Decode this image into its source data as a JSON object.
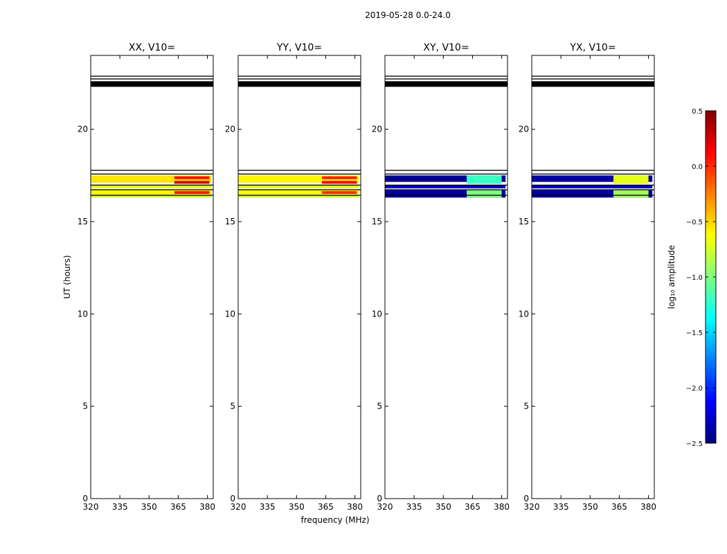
{
  "chart_data": {
    "type": "heatmap",
    "suptitle": "2019-05-28 0.0-24.0",
    "xlabel": "frequency (MHz)",
    "ylabel": "UT (hours)",
    "xlim": [
      320,
      383
    ],
    "ylim": [
      0,
      24
    ],
    "xticks": [
      "320",
      "335",
      "350",
      "365",
      "380"
    ],
    "yticks": [
      "0",
      "5",
      "10",
      "15",
      "20"
    ],
    "colorbar": {
      "label": "log₁₀ amplitude",
      "range": [
        -2.5,
        0.5
      ],
      "ticks": [
        "0.5",
        "0.0",
        "−0.5",
        "−1.0",
        "−1.5",
        "−2.0",
        "−2.5"
      ],
      "colormap": [
        "#00007f",
        "#0000ff",
        "#007fff",
        "#00ffff",
        "#7fff7f",
        "#ffff00",
        "#ff7f00",
        "#ff0000",
        "#7f0000"
      ]
    },
    "panels": [
      {
        "title": "XX, V10=",
        "black_rows": [
          [
            22.3,
            22.6
          ],
          [
            22.7,
            22.75
          ],
          [
            22.85,
            22.9
          ],
          [
            17.75,
            17.8
          ],
          [
            17.55,
            17.6
          ],
          [
            16.95,
            17.0
          ],
          [
            16.7,
            16.75
          ],
          [
            16.4,
            16.45
          ]
        ],
        "bands": [
          {
            "t0": 17.1,
            "t1": 17.5,
            "f0": 320,
            "f1": 382,
            "v": -0.55
          },
          {
            "t0": 16.8,
            "t1": 16.95,
            "f0": 320,
            "f1": 382,
            "v": -0.7
          },
          {
            "t0": 16.45,
            "t1": 16.7,
            "f0": 320,
            "f1": 382,
            "v": -0.6
          },
          {
            "t0": 16.3,
            "t1": 16.4,
            "f0": 320,
            "f1": 382,
            "v": -0.75
          },
          {
            "t0": 17.3,
            "t1": 17.45,
            "f0": 363,
            "f1": 381,
            "v": 0.1
          },
          {
            "t0": 17.05,
            "t1": 17.2,
            "f0": 363,
            "f1": 381,
            "v": 0.25
          },
          {
            "t0": 16.5,
            "t1": 16.65,
            "f0": 363,
            "f1": 381,
            "v": 0.05
          }
        ]
      },
      {
        "title": "YY, V10=",
        "black_rows": [
          [
            22.3,
            22.6
          ],
          [
            22.7,
            22.75
          ],
          [
            22.85,
            22.9
          ],
          [
            17.75,
            17.8
          ],
          [
            17.55,
            17.6
          ],
          [
            16.95,
            17.0
          ],
          [
            16.7,
            16.75
          ],
          [
            16.4,
            16.45
          ]
        ],
        "bands": [
          {
            "t0": 17.1,
            "t1": 17.5,
            "f0": 320,
            "f1": 382,
            "v": -0.6
          },
          {
            "t0": 16.8,
            "t1": 16.95,
            "f0": 320,
            "f1": 382,
            "v": -0.7
          },
          {
            "t0": 16.45,
            "t1": 16.7,
            "f0": 320,
            "f1": 382,
            "v": -0.65
          },
          {
            "t0": 16.3,
            "t1": 16.4,
            "f0": 320,
            "f1": 382,
            "v": -0.75
          },
          {
            "t0": 17.3,
            "t1": 17.45,
            "f0": 363,
            "f1": 381,
            "v": 0.05
          },
          {
            "t0": 17.05,
            "t1": 17.2,
            "f0": 363,
            "f1": 381,
            "v": 0.15
          },
          {
            "t0": 16.5,
            "t1": 16.65,
            "f0": 363,
            "f1": 381,
            "v": 0.0
          }
        ]
      },
      {
        "title": "XY, V10=",
        "black_rows": [
          [
            22.3,
            22.6
          ],
          [
            22.7,
            22.75
          ],
          [
            22.85,
            22.9
          ],
          [
            17.75,
            17.8
          ],
          [
            17.55,
            17.6
          ],
          [
            16.95,
            17.0
          ],
          [
            16.7,
            16.75
          ],
          [
            16.4,
            16.45
          ]
        ],
        "bands": [
          {
            "t0": 17.15,
            "t1": 17.5,
            "f0": 320,
            "f1": 382,
            "v": -2.45
          },
          {
            "t0": 16.8,
            "t1": 16.95,
            "f0": 320,
            "f1": 382,
            "v": -2.3
          },
          {
            "t0": 16.3,
            "t1": 16.7,
            "f0": 320,
            "f1": 382,
            "v": -2.4
          },
          {
            "t0": 17.05,
            "t1": 17.5,
            "f0": 362,
            "f1": 380,
            "v": -1.2
          },
          {
            "t0": 16.3,
            "t1": 16.7,
            "f0": 362,
            "f1": 380,
            "v": -1.0
          }
        ]
      },
      {
        "title": "YX, V10=",
        "black_rows": [
          [
            22.3,
            22.6
          ],
          [
            22.7,
            22.75
          ],
          [
            22.85,
            22.9
          ],
          [
            17.75,
            17.8
          ],
          [
            17.55,
            17.6
          ],
          [
            16.95,
            17.0
          ],
          [
            16.7,
            16.75
          ],
          [
            16.4,
            16.45
          ]
        ],
        "bands": [
          {
            "t0": 17.15,
            "t1": 17.5,
            "f0": 320,
            "f1": 382,
            "v": -2.4
          },
          {
            "t0": 16.8,
            "t1": 16.95,
            "f0": 320,
            "f1": 382,
            "v": -2.3
          },
          {
            "t0": 16.3,
            "t1": 16.7,
            "f0": 320,
            "f1": 382,
            "v": -2.4
          },
          {
            "t0": 17.05,
            "t1": 17.5,
            "f0": 362,
            "f1": 380,
            "v": -0.7
          },
          {
            "t0": 16.3,
            "t1": 16.7,
            "f0": 362,
            "f1": 380,
            "v": -0.9
          }
        ]
      }
    ]
  }
}
